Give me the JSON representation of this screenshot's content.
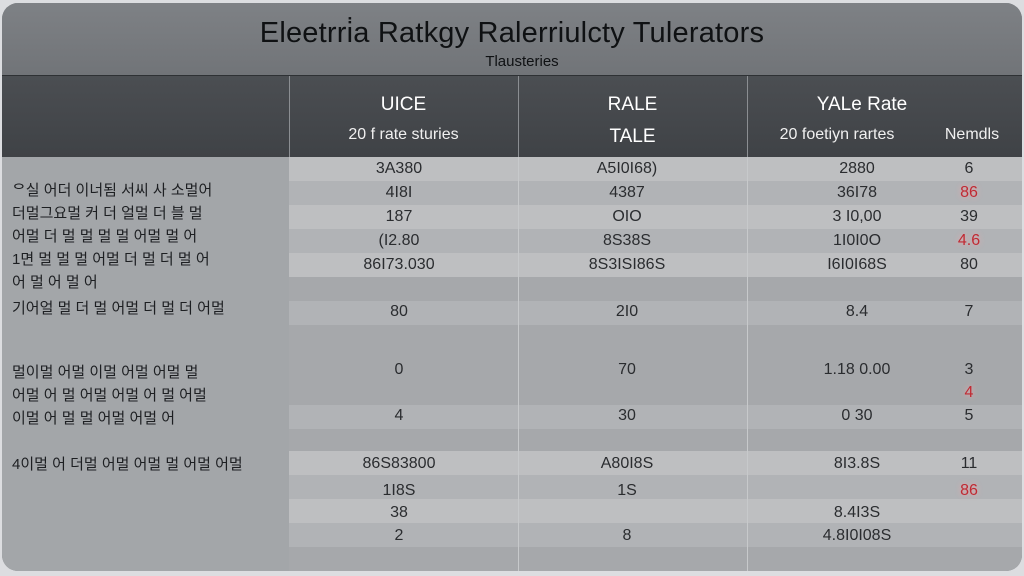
{
  "header": {
    "title": "Eleetrri̇a Ratkgy Ralerriulcty Tulerators",
    "subtitle": "Tlausteries"
  },
  "columns": [
    {
      "label": "UICE",
      "sublabel": "20 f rate sturies"
    },
    {
      "label": "RALE",
      "sublabel": "TALE"
    },
    {
      "label": "YALe Rate",
      "sublabel": "20 foetiyn rartes"
    },
    {
      "label": "",
      "sublabel": "Nemdls"
    }
  ],
  "left_text": [
    "ᄋ실 어더 이너됨 서씨 사 소멀어\n더멀그요멀 커 더 얼멀 더 블 멀\n어멀 더 멀 멀  멀 멀 어멀 멀  어\n1면 멀 멀 멀 어멀 더 멀 더 멀 어\n 어 멀 어 멀 어",
    "기어얼 멀 더 멀 어멀 더 멀 더 어멀",
    "멀이멀 어멀 이멀 어멀 어멀 멀\n어멀 어 멀 어멀 어멀 어 멀 어멀\n 이멀 어 멀 멀 어멀 어멀 어",
    "4이멀 어 더멀 어멀 어멀 멀 어멀 어멀"
  ],
  "rows": [
    {
      "cells": [
        "3A380",
        "A5I0I68)",
        "2880",
        "6"
      ],
      "red": false
    },
    {
      "cells": [
        "4I8I",
        "4387",
        "36I78",
        "86"
      ],
      "red": true
    },
    {
      "cells": [
        "187",
        "OIO",
        "3 I0,00",
        "39"
      ],
      "red": false
    },
    {
      "cells": [
        "(I2.80",
        "8S38S",
        "1I0I0O",
        "4.6"
      ],
      "red": true
    },
    {
      "cells": [
        "86I73.030",
        "8S3ISI86S",
        "I6I0I68S",
        "80"
      ],
      "red": false
    },
    {
      "cells": [
        "80",
        "2I0",
        "8.4",
        "7"
      ],
      "red": false
    },
    {
      "cells": [
        "0",
        "70",
        "1.18 0.00",
        "3"
      ],
      "red": false
    },
    {
      "cells": [
        "",
        "",
        "",
        "4"
      ],
      "red": true
    },
    {
      "cells": [
        "4",
        "30",
        "0 30",
        "5"
      ],
      "red": false
    },
    {
      "cells": [
        "86S83800",
        "A80I8S",
        "8I3.8S",
        "11"
      ],
      "red": false
    },
    {
      "cells": [
        "1I8S",
        "1S",
        "",
        "86"
      ],
      "red": true
    },
    {
      "cells": [
        "38",
        "",
        "8.4I3S",
        ""
      ],
      "red": false
    },
    {
      "cells": [
        "2",
        "8",
        "4.8I0I08S",
        ""
      ],
      "red": false
    }
  ]
}
